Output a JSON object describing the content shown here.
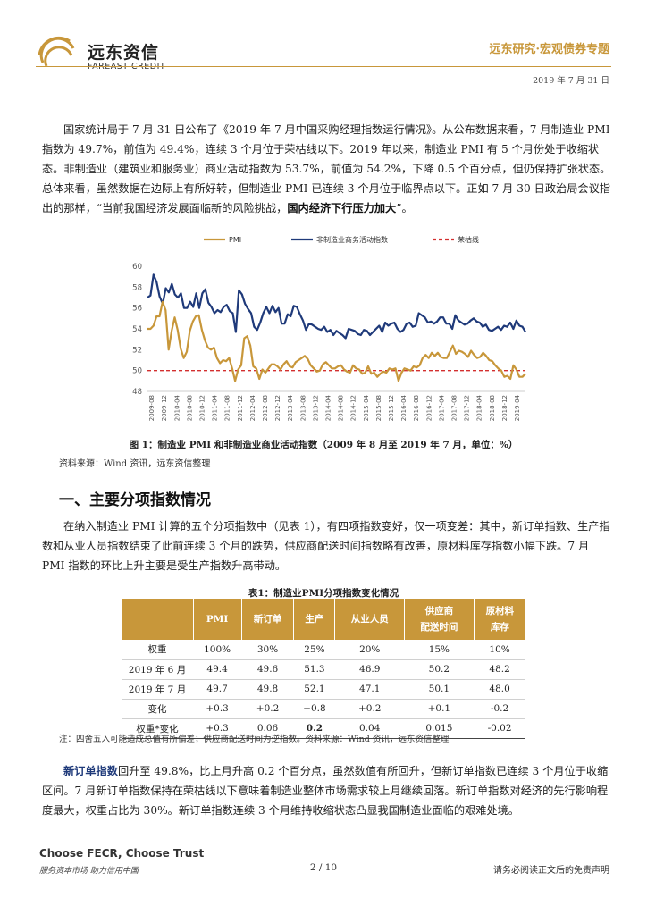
{
  "header": {
    "company_cn": "远东资信",
    "company_en": "FAREAST CREDIT",
    "series": "远东研究·宏观债券专题",
    "date": "2019 年 7 月 31 日"
  },
  "body": {
    "intro": [
      "国家统计局于 7 月 31 日公布了《2019 年 7 月中国采购经理指数运行情况》。从公布数据来看，7 月制造业 PMI 指数为 49.7%，前值为 49.4%，连续 3 个月位于荣枯线以下。2019 年以来，制造业 PMI 有 5 个月份处于收缩状态。非制造业（建筑业和服务业）商业活动指数为 53.7%，前值为 54.2%，下降 0.5 个百分点，但仍保持扩张状态。总体来看，虽然数据在边际上有所好转，但制造业 PMI 已连续 3 个月位于临界点以下。正如 7 月 30 日政治局会议指出的那样，“当前我国经济发展面临新的风险挑战，",
      "国内经济下行压力加大",
      "”。"
    ],
    "figure_caption": "图 1：制造业 PMI 和非制造业商业活动指数（2009 年 8 月至 2019 年 7 月，单位：%）",
    "figure_source": "资料来源：Wind 资讯，远东资信整理",
    "section_title": "一、主要分项指数情况",
    "section_para": "在纳入制造业 PMI 计算的五个分项指数中（见表 1），有四项指数变好，仅一项变差：其中，新订单指数、生产指数和从业人员指数结束了此前连续 3 个月的跌势，供应商配送时间指数略有改善，原材料库存指数小幅下跌。7 月 PMI 指数的环比上升主要是受生产指数升高带动。",
    "table_caption": "表1：制造业PMI分项指数变化情况",
    "table_note": "注：四舍五入可能造成总值有所偏差；供应商配送时间为逆指数。资料来源：Wind 资讯，远东资信整理",
    "last_para_lead": "新订单指数",
    "last_para": "回升至 49.8%，比上月升高 0.2 个百分点，虽然数值有所回升，但新订单指数已连续 3 个月位于收缩区间。7 月新订单指数保持在荣枯线以下意味着制造业整体市场需求较上月继续回落。新订单指数对经济的先行影响程度最大，权重占比为 30%。新订单指数连续 3 个月维持收缩状态凸显我国制造业面临的艰难处境。"
  },
  "table": {
    "headers": [
      "",
      "PMI",
      "新订单",
      "生产",
      "从业人员",
      "供应商\n配送时间",
      "原材料\n库存"
    ],
    "rows": [
      [
        "权重",
        "100%",
        "30%",
        "25%",
        "20%",
        "15%",
        "10%"
      ],
      [
        "2019 年 6 月",
        "49.4",
        "49.6",
        "51.3",
        "46.9",
        "50.2",
        "48.2"
      ],
      [
        "2019 年 7 月",
        "49.7",
        "49.8",
        "52.1",
        "47.1",
        "50.1",
        "48.0"
      ],
      [
        "变化",
        "+0.3",
        "+0.2",
        "+0.8",
        "+0.2",
        "+0.1",
        "-0.2"
      ],
      [
        "权重*变化",
        "+0.3",
        "0.06",
        "0.2",
        "0.04",
        "0.015",
        "-0.02"
      ]
    ]
  },
  "footer": {
    "slogan": "Choose FECR, Choose Trust",
    "sub": "服务资本市场  助力信用中国",
    "page": "2 / 10",
    "disclaimer": "请务必阅读正文后的免责声明"
  },
  "colors": {
    "gold": "#C8973A",
    "navy": "#1F3A7A",
    "red": "#D32F2F"
  },
  "chart_data": {
    "type": "line",
    "legend_position": "top",
    "ylim": [
      48,
      60
    ],
    "yticks": [
      48,
      50,
      52,
      54,
      56,
      58,
      60
    ],
    "xtick_labels": [
      "2009-08",
      "2009-12",
      "2010-04",
      "2010-08",
      "2010-12",
      "2011-04",
      "2011-08",
      "2011-12",
      "2012-04",
      "2012-08",
      "2012-12",
      "2013-04",
      "2013-08",
      "2013-12",
      "2014-04",
      "2014-08",
      "2014-12",
      "2015-04",
      "2015-08",
      "2015-12",
      "2016-04",
      "2016-08",
      "2016-12",
      "2017-04",
      "2017-08",
      "2017-12",
      "2018-04",
      "2018-08",
      "2018-12",
      "2019-04"
    ],
    "series": [
      {
        "name": "PMI",
        "color": "#C8973A",
        "values": [
          54.0,
          54.0,
          54.3,
          55.2,
          55.2,
          56.6,
          55.8,
          52.0,
          53.8,
          55.1,
          53.9,
          52.1,
          51.2,
          51.8,
          53.8,
          54.7,
          55.2,
          55.3,
          53.9,
          52.9,
          52.2,
          52.0,
          52.2,
          51.2,
          50.7,
          51.0,
          50.9,
          51.2,
          50.2,
          49.0,
          50.1,
          50.5,
          53.1,
          53.3,
          52.4,
          50.4,
          50.2,
          49.2,
          50.1,
          49.8,
          50.2,
          50.6,
          50.6,
          50.4,
          50.1,
          50.6,
          50.9,
          50.4,
          50.3,
          50.8,
          51.0,
          51.2,
          51.4,
          51.1,
          50.5,
          50.2,
          49.9,
          50.0,
          50.6,
          50.8,
          50.5,
          50.2,
          50.2,
          50.4,
          50.5,
          50.1,
          49.9,
          49.8,
          50.5,
          50.2,
          50.1,
          49.7,
          49.8,
          50.4,
          49.7,
          49.8,
          49.4,
          49.7,
          49.9,
          49.8,
          50.2,
          50.1,
          50.2,
          49.0,
          49.8,
          50.2,
          50.1,
          50.0,
          50.4,
          50.3,
          50.5,
          51.2,
          51.5,
          51.2,
          51.7,
          51.4,
          51.7,
          51.3,
          51.2,
          51.2,
          51.8,
          52.4,
          51.6,
          51.9,
          51.8,
          51.6,
          51.3,
          51.9,
          51.5,
          51.2,
          51.3,
          51.7,
          51.4,
          51.0,
          50.9,
          50.5,
          50.2,
          50.0,
          49.4,
          49.5,
          49.2,
          50.5,
          50.1,
          49.4,
          49.4,
          49.7
        ]
      },
      {
        "name": "非制造业商务活动指数",
        "color": "#1F3A7A",
        "values": [
          57.0,
          57.2,
          59.2,
          58.5,
          57.1,
          56.4,
          57.9,
          57.5,
          58.3,
          57.3,
          57.0,
          57.4,
          56.0,
          56.0,
          56.6,
          56.1,
          57.4,
          56.0,
          57.4,
          57.8,
          56.5,
          56.1,
          55.5,
          55.8,
          55.6,
          56.1,
          56.3,
          55.7,
          55.5,
          53.7,
          57.7,
          57.3,
          56.4,
          55.9,
          55.5,
          54.2,
          53.9,
          54.6,
          55.5,
          56.1,
          55.5,
          56.2,
          55.6,
          56.0,
          54.5,
          54.5,
          55.4,
          55.2,
          56.2,
          56.1,
          55.4,
          54.8,
          53.9,
          54.5,
          54.4,
          54.2,
          54.0,
          53.9,
          54.2,
          53.7,
          53.9,
          53.4,
          53.8,
          53.6,
          53.4,
          53.1,
          54.0,
          53.9,
          53.8,
          53.5,
          53.4,
          53.9,
          53.8,
          53.4,
          53.7,
          54.0,
          54.3,
          53.7,
          54.6,
          54.3,
          54.5,
          54.6,
          54.0,
          53.7,
          53.9,
          54.5,
          54.6,
          54.2,
          54.3,
          55.5,
          55.3,
          55.1,
          54.6,
          54.7,
          54.5,
          54.7,
          55.1,
          55.1,
          54.5,
          54.5,
          54.0,
          55.3,
          54.8,
          54.6,
          54.4,
          54.5,
          54.8,
          55.0,
          54.7,
          54.6,
          54.2,
          54.4,
          53.9,
          53.8,
          54.0,
          54.2,
          53.9,
          54.3,
          54.2,
          54.6,
          54.0,
          54.8,
          54.3,
          54.2,
          53.7
        ]
      },
      {
        "name": "荣枯线",
        "color": "#D32F2F",
        "values": [
          50
        ]
      }
    ]
  }
}
